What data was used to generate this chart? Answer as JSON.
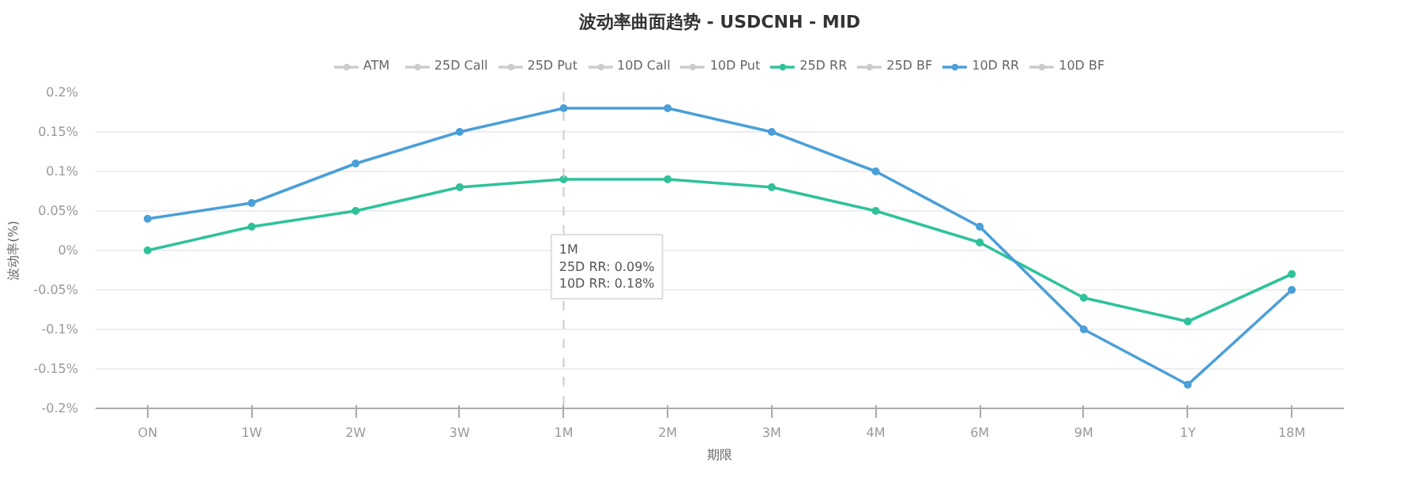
{
  "chart_data": {
    "type": "line",
    "title": "波动率曲面趋势 - USDCNH - MID",
    "xlabel": "期限",
    "ylabel": "波动率(%)",
    "categories": [
      "ON",
      "1W",
      "2W",
      "3W",
      "1M",
      "2M",
      "3M",
      "4M",
      "6M",
      "9M",
      "1Y",
      "18M"
    ],
    "series": [
      {
        "name": "ATM",
        "color": "#cccccc",
        "values": [
          null,
          null,
          null,
          null,
          null,
          null,
          null,
          null,
          null,
          null,
          null,
          null
        ]
      },
      {
        "name": "25D Call",
        "color": "#cccccc",
        "values": [
          null,
          null,
          null,
          null,
          null,
          null,
          null,
          null,
          null,
          null,
          null,
          null
        ]
      },
      {
        "name": "25D Put",
        "color": "#cccccc",
        "values": [
          null,
          null,
          null,
          null,
          null,
          null,
          null,
          null,
          null,
          null,
          null,
          null
        ]
      },
      {
        "name": "10D Call",
        "color": "#cccccc",
        "values": [
          null,
          null,
          null,
          null,
          null,
          null,
          null,
          null,
          null,
          null,
          null,
          null
        ]
      },
      {
        "name": "10D Put",
        "color": "#cccccc",
        "values": [
          null,
          null,
          null,
          null,
          null,
          null,
          null,
          null,
          null,
          null,
          null,
          null
        ]
      },
      {
        "name": "25D RR",
        "color": "#2fc29b",
        "values": [
          0,
          0.03,
          0.05,
          0.08,
          0.09,
          0.09,
          0.08,
          0.05,
          0.01,
          -0.06,
          -0.09,
          -0.03
        ]
      },
      {
        "name": "25D BF",
        "color": "#cccccc",
        "values": [
          null,
          null,
          null,
          null,
          null,
          null,
          null,
          null,
          null,
          null,
          null,
          null
        ]
      },
      {
        "name": "10D RR",
        "color": "#4a9fd8",
        "values": [
          0.04,
          0.06,
          0.11,
          0.15,
          0.18,
          0.18,
          0.15,
          0.1,
          0.03,
          -0.1,
          -0.17,
          -0.05
        ]
      },
      {
        "name": "10D BF",
        "color": "#cccccc",
        "values": [
          null,
          null,
          null,
          null,
          null,
          null,
          null,
          null,
          null,
          null,
          null,
          null
        ]
      }
    ],
    "ylim": [
      -0.2,
      0.2
    ],
    "yticks": [
      {
        "value": -0.2,
        "label": "-0.2%"
      },
      {
        "value": -0.15,
        "label": "-0.15%"
      },
      {
        "value": -0.1,
        "label": "-0.1%"
      },
      {
        "value": -0.05,
        "label": "-0.05%"
      },
      {
        "value": 0,
        "label": "0%"
      },
      {
        "value": 0.05,
        "label": "0.05%"
      },
      {
        "value": 0.1,
        "label": "0.1%"
      },
      {
        "value": 0.15,
        "label": "0.15%"
      },
      {
        "value": 0.2,
        "label": "0.2%"
      }
    ],
    "grid": "y",
    "legend": "top",
    "marker": "circle",
    "line_style": "solid",
    "ref_lines": [
      {
        "axis": "x",
        "value": "1M",
        "color": "#cccccc",
        "line_style": "dashed"
      }
    ],
    "annotations": [
      "1M\n25D RR: 0.09%\n10D RR: 0.18%"
    ]
  }
}
